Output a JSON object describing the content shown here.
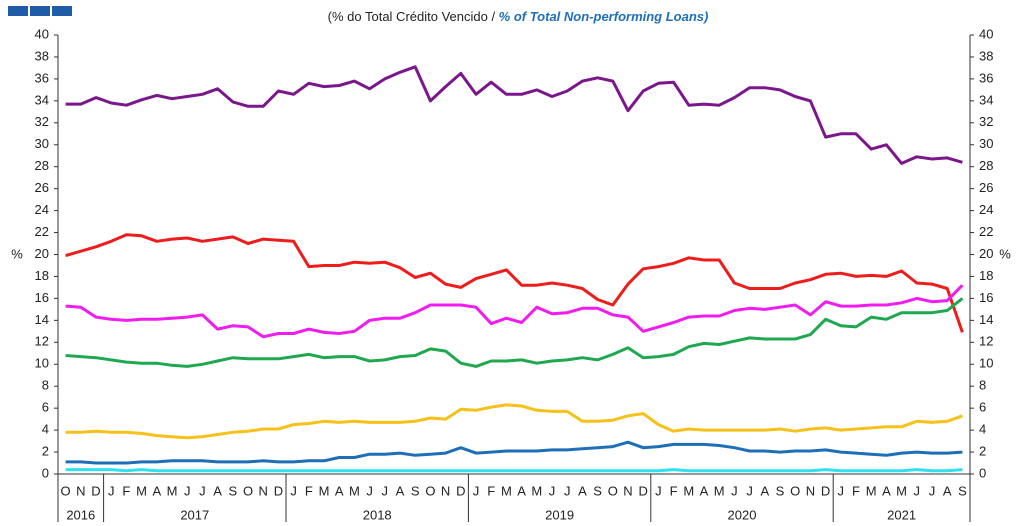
{
  "chart_data": {
    "type": "line",
    "title": "(% do Total  Crédito Vencido / ",
    "title_en": "% of Total Non-performing Loans)",
    "ylabel": "%",
    "y2label": "%",
    "categories": [
      "O",
      "N",
      "D",
      "J",
      "F",
      "M",
      "A",
      "M",
      "J",
      "J",
      "A",
      "S",
      "O",
      "N",
      "D",
      "J",
      "F",
      "M",
      "A",
      "M",
      "J",
      "J",
      "A",
      "S",
      "O",
      "N",
      "D",
      "J",
      "F",
      "M",
      "A",
      "M",
      "J",
      "J",
      "A",
      "S",
      "O",
      "N",
      "D",
      "J",
      "F",
      "M",
      "A",
      "M",
      "J",
      "J",
      "A",
      "S",
      "O",
      "N",
      "D",
      "J",
      "F",
      "M",
      "A",
      "M",
      "J",
      "J",
      "A",
      "S"
    ],
    "years": [
      "2016",
      "2017",
      "2018",
      "2019",
      "2020",
      "2021"
    ],
    "ylim": [
      0,
      40
    ],
    "yticks": [
      0,
      2,
      4,
      6,
      8,
      10,
      12,
      14,
      16,
      18,
      20,
      22,
      24,
      26,
      28,
      30,
      32,
      34,
      36,
      38,
      40
    ],
    "y2lim": [
      0,
      40
    ],
    "y2ticks": [
      0,
      2,
      4,
      6,
      8,
      10,
      12,
      14,
      16,
      18,
      20,
      22,
      24,
      26,
      28,
      30,
      32,
      34,
      36,
      38,
      40
    ],
    "series": [
      {
        "color": "#7b168c",
        "values": [
          33.7,
          33.7,
          34.3,
          33.8,
          33.6,
          34.1,
          34.5,
          34.2,
          34.4,
          34.6,
          35.1,
          33.9,
          33.5,
          33.5,
          34.9,
          34.6,
          35.6,
          35.3,
          35.4,
          35.8,
          35.1,
          36.0,
          36.6,
          37.1,
          34.0,
          35.3,
          36.5,
          34.6,
          35.7,
          34.6,
          34.6,
          35.0,
          34.4,
          34.9,
          35.8,
          36.1,
          35.8,
          33.1,
          34.9,
          35.6,
          35.7,
          33.6,
          33.7,
          33.6,
          34.3,
          35.2,
          35.2,
          35.0,
          34.4,
          34.0,
          30.7,
          31.0,
          31.0,
          29.6,
          30.0,
          28.3,
          28.9,
          28.7,
          28.8,
          28.4
        ]
      },
      {
        "color": "#ee1c1c",
        "values": [
          19.9,
          20.3,
          20.7,
          21.2,
          21.8,
          21.7,
          21.2,
          21.4,
          21.5,
          21.2,
          21.4,
          21.6,
          21.0,
          21.4,
          21.3,
          21.2,
          18.9,
          19.0,
          19.0,
          19.3,
          19.2,
          19.3,
          18.8,
          17.9,
          18.3,
          17.3,
          17.0,
          17.8,
          18.2,
          18.6,
          17.2,
          17.2,
          17.4,
          17.2,
          16.9,
          15.9,
          15.4,
          17.3,
          18.7,
          18.9,
          19.2,
          19.7,
          19.5,
          19.5,
          17.4,
          16.9,
          16.9,
          16.9,
          17.4,
          17.7,
          18.2,
          18.3,
          18.0,
          18.1,
          18.0,
          18.5,
          17.4,
          17.3,
          16.9,
          12.9
        ]
      },
      {
        "color": "#f01cf0",
        "values": [
          15.3,
          15.2,
          14.3,
          14.1,
          14.0,
          14.1,
          14.1,
          14.2,
          14.3,
          14.5,
          13.2,
          13.5,
          13.4,
          12.5,
          12.8,
          12.8,
          13.2,
          12.9,
          12.8,
          13.0,
          14.0,
          14.2,
          14.2,
          14.7,
          15.4,
          15.4,
          15.4,
          15.2,
          13.7,
          14.2,
          13.8,
          15.2,
          14.6,
          14.7,
          15.1,
          15.1,
          14.5,
          14.3,
          13.0,
          13.4,
          13.8,
          14.3,
          14.4,
          14.4,
          14.9,
          15.1,
          15.0,
          15.2,
          15.4,
          14.5,
          15.7,
          15.3,
          15.3,
          15.4,
          15.4,
          15.6,
          16.0,
          15.7,
          15.8,
          17.2
        ]
      },
      {
        "color": "#1fa84f",
        "values": [
          10.8,
          10.7,
          10.6,
          10.4,
          10.2,
          10.1,
          10.1,
          9.9,
          9.8,
          10.0,
          10.3,
          10.6,
          10.5,
          10.5,
          10.5,
          10.7,
          10.9,
          10.6,
          10.7,
          10.7,
          10.3,
          10.4,
          10.7,
          10.8,
          11.4,
          11.2,
          10.1,
          9.8,
          10.3,
          10.3,
          10.4,
          10.1,
          10.3,
          10.4,
          10.6,
          10.4,
          10.9,
          11.5,
          10.6,
          10.7,
          10.9,
          11.6,
          11.9,
          11.8,
          12.1,
          12.4,
          12.3,
          12.3,
          12.3,
          12.7,
          14.1,
          13.5,
          13.4,
          14.3,
          14.1,
          14.7,
          14.7,
          14.7,
          14.9,
          16.0
        ]
      },
      {
        "color": "#f7c11a",
        "values": [
          3.8,
          3.8,
          3.9,
          3.8,
          3.8,
          3.7,
          3.5,
          3.4,
          3.3,
          3.4,
          3.6,
          3.8,
          3.9,
          4.1,
          4.1,
          4.5,
          4.6,
          4.8,
          4.7,
          4.8,
          4.7,
          4.7,
          4.7,
          4.8,
          5.1,
          5.0,
          5.9,
          5.8,
          6.1,
          6.3,
          6.2,
          5.8,
          5.7,
          5.7,
          4.8,
          4.8,
          4.9,
          5.3,
          5.5,
          4.5,
          3.9,
          4.1,
          4.0,
          4.0,
          4.0,
          4.0,
          4.0,
          4.1,
          3.9,
          4.1,
          4.2,
          4.0,
          4.1,
          4.2,
          4.3,
          4.3,
          4.8,
          4.7,
          4.8,
          5.3
        ]
      },
      {
        "color": "#1f6fb8",
        "values": [
          1.1,
          1.1,
          1.0,
          1.0,
          1.0,
          1.1,
          1.1,
          1.2,
          1.2,
          1.2,
          1.1,
          1.1,
          1.1,
          1.2,
          1.1,
          1.1,
          1.2,
          1.2,
          1.5,
          1.5,
          1.8,
          1.8,
          1.9,
          1.7,
          1.8,
          1.9,
          2.4,
          1.9,
          2.0,
          2.1,
          2.1,
          2.1,
          2.2,
          2.2,
          2.3,
          2.4,
          2.5,
          2.9,
          2.4,
          2.5,
          2.7,
          2.7,
          2.7,
          2.6,
          2.4,
          2.1,
          2.1,
          2.0,
          2.1,
          2.1,
          2.2,
          2.0,
          1.9,
          1.8,
          1.7,
          1.9,
          2.0,
          1.9,
          1.9,
          2.0
        ]
      },
      {
        "color": "#2fe0f0",
        "values": [
          0.4,
          0.4,
          0.4,
          0.4,
          0.3,
          0.4,
          0.3,
          0.3,
          0.3,
          0.3,
          0.3,
          0.3,
          0.3,
          0.3,
          0.3,
          0.3,
          0.3,
          0.3,
          0.3,
          0.3,
          0.3,
          0.3,
          0.3,
          0.3,
          0.3,
          0.3,
          0.3,
          0.3,
          0.3,
          0.3,
          0.3,
          0.3,
          0.3,
          0.3,
          0.3,
          0.3,
          0.3,
          0.3,
          0.3,
          0.3,
          0.4,
          0.3,
          0.3,
          0.3,
          0.3,
          0.3,
          0.3,
          0.3,
          0.3,
          0.3,
          0.4,
          0.3,
          0.3,
          0.3,
          0.3,
          0.3,
          0.4,
          0.3,
          0.3,
          0.4
        ]
      }
    ]
  }
}
